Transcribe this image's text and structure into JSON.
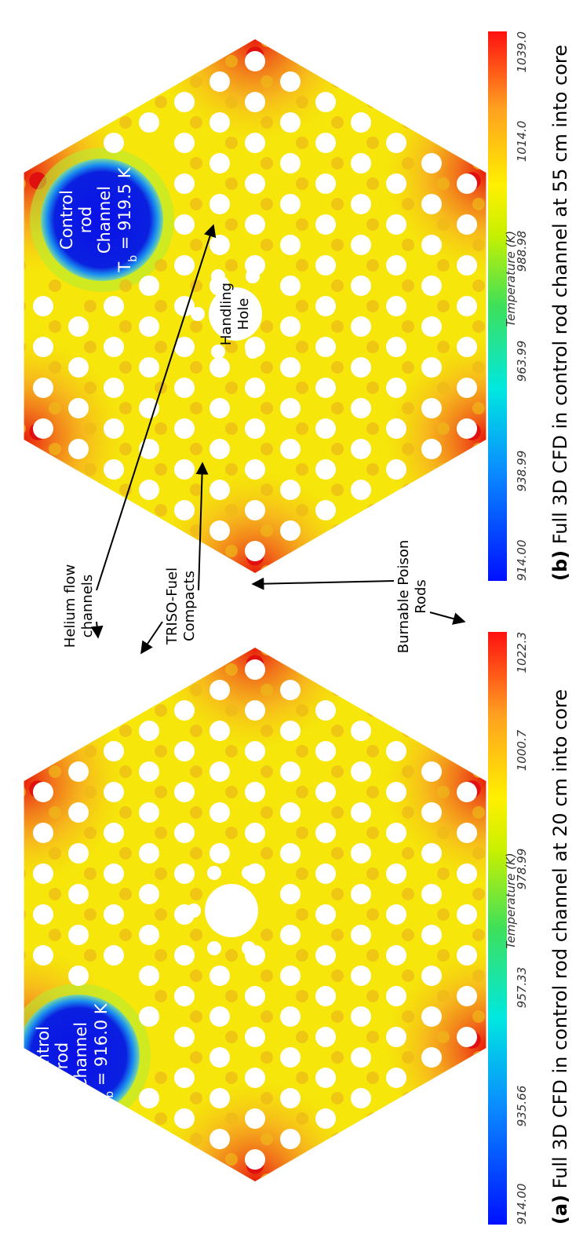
{
  "panels": [
    {
      "caption_label": "(a)",
      "caption": "Full 3D CFD in control rod channel at 20 cm into core",
      "control_rod": {
        "lines": [
          "Control",
          "rod",
          "Channel"
        ],
        "tb_symbol": "T",
        "tb_subscript": "b",
        "tb_value": " = 916.0 K"
      },
      "colorbar": {
        "title": "Temperature (K)",
        "ticks": [
          "914.00",
          "935.66",
          "957.33",
          "978.99",
          "1000.7",
          "1022.3"
        ]
      }
    },
    {
      "caption_label": "(b)",
      "caption": "Full 3D CFD in control rod channel at 55 cm into core",
      "control_rod": {
        "lines": [
          "Control",
          "rod",
          "Channel"
        ],
        "tb_symbol": "T",
        "tb_subscript": "b",
        "tb_value": " = 919.5 K"
      },
      "handling_hole": [
        "Handling",
        "Hole"
      ],
      "colorbar": {
        "title": "Temperature (K)",
        "ticks": [
          "914.00",
          "938.99",
          "963.99",
          "988.98",
          "1014.0",
          "1039.0"
        ]
      }
    }
  ],
  "annotations": [
    {
      "lines": [
        "Helium flow",
        "channels"
      ]
    },
    {
      "lines": [
        "TRISO-Fuel",
        "Compacts"
      ]
    },
    {
      "lines": [
        "Burnable Poison",
        "Rods"
      ]
    }
  ]
}
